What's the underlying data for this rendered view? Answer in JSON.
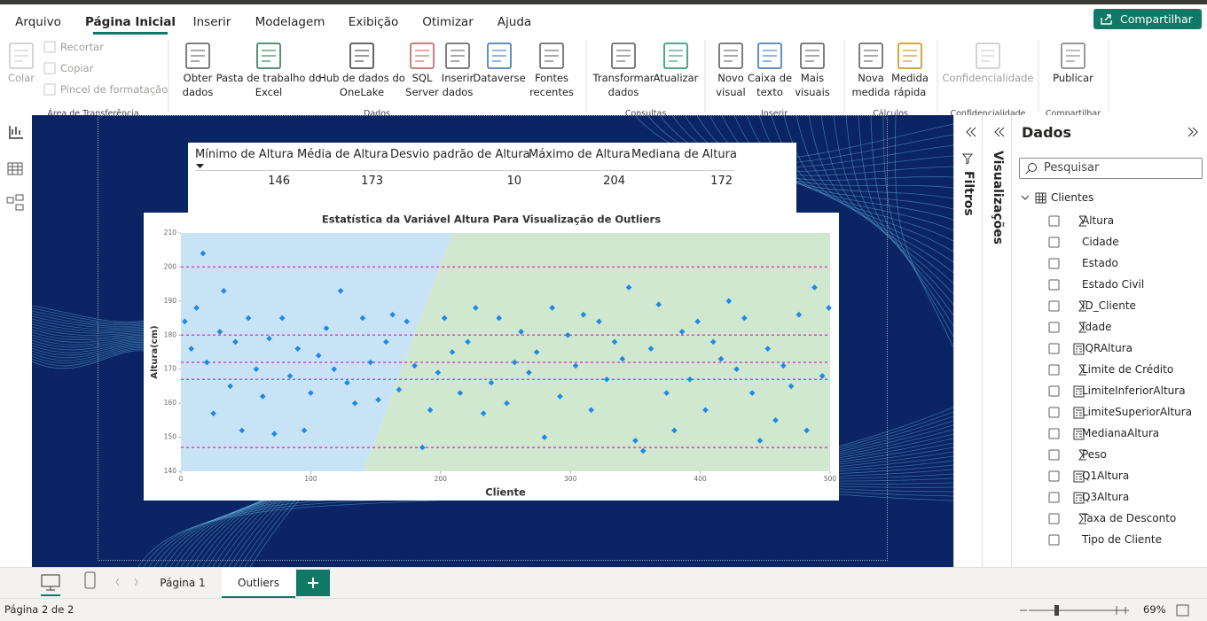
{
  "ribbon": {
    "tabs": [
      "Arquivo",
      "Página Inicial",
      "Inserir",
      "Modelagem",
      "Exibição",
      "Otimizar",
      "Ajuda"
    ],
    "active_tab": 1,
    "share": "Compartilhar",
    "groups": [
      {
        "name": "Área de Transferência",
        "buttons": [
          {
            "label": [
              "Colar"
            ],
            "disabled": true
          }
        ],
        "small": [
          "Recortar",
          "Copiar",
          "Pincel de formatação"
        ]
      },
      {
        "name": "Dados",
        "buttons": [
          {
            "label": [
              "Obter",
              "dados"
            ]
          },
          {
            "label": [
              "Pasta de trabalho do",
              "Excel"
            ]
          },
          {
            "label": [
              "Hub de dados do",
              "OneLake"
            ]
          },
          {
            "label": [
              "SQL",
              "Server"
            ]
          },
          {
            "label": [
              "Inserir",
              "dados"
            ]
          },
          {
            "label": [
              "Dataverse"
            ]
          },
          {
            "label": [
              "Fontes",
              "recentes"
            ]
          }
        ]
      },
      {
        "name": "Consultas",
        "buttons": [
          {
            "label": [
              "Transformar",
              "dados"
            ]
          },
          {
            "label": [
              "Atualizar"
            ]
          }
        ]
      },
      {
        "name": "Inserir",
        "buttons": [
          {
            "label": [
              "Novo",
              "visual"
            ]
          },
          {
            "label": [
              "Caixa de",
              "texto"
            ]
          },
          {
            "label": [
              "Mais",
              "visuais"
            ]
          }
        ]
      },
      {
        "name": "Cálculos",
        "buttons": [
          {
            "label": [
              "Nova",
              "medida"
            ]
          },
          {
            "label": [
              "Medida",
              "rápida"
            ]
          }
        ]
      },
      {
        "name": "Confidencialidade",
        "buttons": [
          {
            "label": [
              "Confidencialidade"
            ],
            "disabled": true
          }
        ]
      },
      {
        "name": "Compartilhar",
        "buttons": [
          {
            "label": [
              "Publicar"
            ]
          }
        ]
      }
    ]
  },
  "table": {
    "headers": [
      "Mínimo de Altura",
      "Média de Altura",
      "Desvio padrão de Altura",
      "Máximo de Altura",
      "Mediana de Altura"
    ],
    "values": [
      146,
      173,
      10,
      204,
      172
    ]
  },
  "chart_data": {
    "type": "scatter",
    "title": "Estatística da Variável Altura Para Visualização de Outliers",
    "x_label": "Cliente",
    "y_label": "Altura(cm)",
    "xlim": [
      0,
      500
    ],
    "ylim": [
      140,
      210
    ],
    "xticks": [
      0,
      100,
      200,
      300,
      400,
      500
    ],
    "yticks": [
      140,
      150,
      160,
      170,
      180,
      190,
      200,
      210
    ],
    "reference_lines": [
      147,
      167,
      172,
      180,
      200
    ],
    "reference_color": "#e040c8",
    "color": "#1e88e5",
    "x": [
      3,
      8,
      12,
      17,
      20,
      25,
      30,
      33,
      38,
      42,
      47,
      52,
      58,
      63,
      68,
      72,
      78,
      84,
      90,
      95,
      100,
      106,
      112,
      118,
      123,
      128,
      134,
      140,
      146,
      152,
      158,
      163,
      168,
      174,
      180,
      186,
      192,
      198,
      203,
      209,
      215,
      221,
      227,
      233,
      239,
      245,
      251,
      257,
      262,
      268,
      274,
      280,
      286,
      292,
      298,
      304,
      310,
      316,
      322,
      328,
      334,
      340,
      345,
      350,
      356,
      362,
      368,
      374,
      380,
      386,
      392,
      398,
      404,
      410,
      416,
      422,
      428,
      434,
      440,
      446,
      452,
      458,
      464,
      470,
      476,
      482,
      488,
      494,
      499
    ],
    "y": [
      184,
      176,
      188,
      204,
      172,
      157,
      181,
      193,
      165,
      178,
      152,
      185,
      170,
      162,
      179,
      151,
      185,
      168,
      176,
      152,
      163,
      174,
      182,
      170,
      193,
      166,
      160,
      185,
      172,
      161,
      178,
      186,
      164,
      184,
      171,
      147,
      158,
      169,
      185,
      175,
      163,
      178,
      188,
      157,
      166,
      185,
      160,
      172,
      181,
      169,
      175,
      150,
      188,
      162,
      180,
      171,
      186,
      158,
      184,
      167,
      178,
      173,
      194,
      149,
      146,
      176,
      189,
      163,
      152,
      181,
      167,
      184,
      158,
      178,
      173,
      190,
      170,
      185,
      163,
      149,
      176,
      155,
      171,
      165,
      186,
      152,
      194,
      168,
      188
    ]
  },
  "panes": {
    "filters": "Filtros",
    "visualizations": "Visualizações",
    "data": {
      "title": "Dados",
      "search": "Pesquisar",
      "table": "Clientes",
      "fields": [
        {
          "name": "Altura",
          "kind": "sum"
        },
        {
          "name": "Cidade",
          "kind": "text"
        },
        {
          "name": "Estado",
          "kind": "text"
        },
        {
          "name": "Estado Civil",
          "kind": "text"
        },
        {
          "name": "ID_Cliente",
          "kind": "sum"
        },
        {
          "name": "Idade",
          "kind": "sum"
        },
        {
          "name": "IQRAltura",
          "kind": "measure"
        },
        {
          "name": "Limite de Crédito",
          "kind": "sum"
        },
        {
          "name": "LimiteInferiorAltura",
          "kind": "measure"
        },
        {
          "name": "LimiteSuperiorAltura",
          "kind": "measure"
        },
        {
          "name": "MedianaAltura",
          "kind": "measure"
        },
        {
          "name": "Peso",
          "kind": "sum"
        },
        {
          "name": "Q1Altura",
          "kind": "measure"
        },
        {
          "name": "Q3Altura",
          "kind": "measure"
        },
        {
          "name": "Taxa de Desconto",
          "kind": "sum"
        },
        {
          "name": "Tipo de Cliente",
          "kind": "text"
        }
      ]
    }
  },
  "pages": {
    "tabs": [
      "Página 1",
      "Outliers"
    ],
    "active": 1
  },
  "status": {
    "page": "Página 2 de 2",
    "zoom": "69%"
  }
}
